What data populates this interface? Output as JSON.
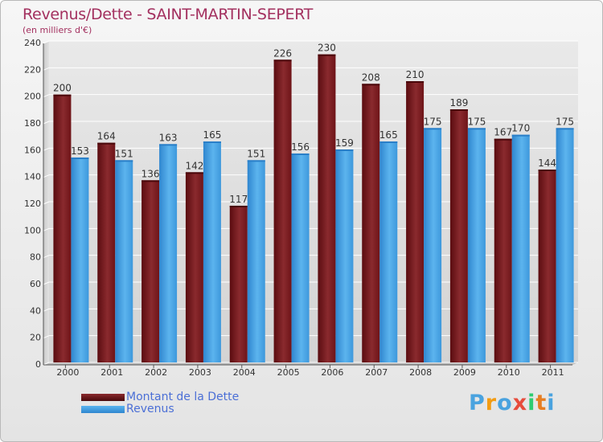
{
  "title": "Revenus/Dette - SAINT-MARTIN-SEPERT",
  "subtitle": "(en milliers d'€)",
  "colors": {
    "dette": "#7a1a1e",
    "revenus": "#4ea7e6",
    "title": "#a3305f",
    "legend_text": "#4b6fd6"
  },
  "legend": {
    "items": [
      {
        "label": "Montant de la Dette",
        "color": "#6b1116"
      },
      {
        "label": "Revenus",
        "color": "#3d98dc"
      }
    ]
  },
  "logo": {
    "letters": [
      "P",
      "r",
      "o",
      "x",
      "i",
      "t",
      "i"
    ],
    "colors": [
      "#4aa3df",
      "#f39c12",
      "#4aa3df",
      "#e74c3c",
      "#2ecc71",
      "#e67e22",
      "#4aa3df"
    ]
  },
  "chart_data": {
    "type": "bar",
    "categories": [
      "2000",
      "2001",
      "2002",
      "2003",
      "2004",
      "2005",
      "2006",
      "2007",
      "2008",
      "2009",
      "2010",
      "2011"
    ],
    "series": [
      {
        "name": "Montant de la Dette",
        "values": [
          200,
          164,
          136,
          142,
          117,
          226,
          230,
          208,
          210,
          189,
          167,
          144
        ]
      },
      {
        "name": "Revenus",
        "values": [
          153,
          151,
          163,
          165,
          151,
          156,
          159,
          165,
          175,
          175,
          170,
          175
        ]
      }
    ],
    "yticks": [
      0,
      20,
      40,
      60,
      80,
      100,
      120,
      140,
      160,
      180,
      200,
      220,
      240
    ],
    "ylim": [
      0,
      240
    ],
    "grid": true,
    "data_labels": true,
    "legend_position": "bottom-left"
  }
}
